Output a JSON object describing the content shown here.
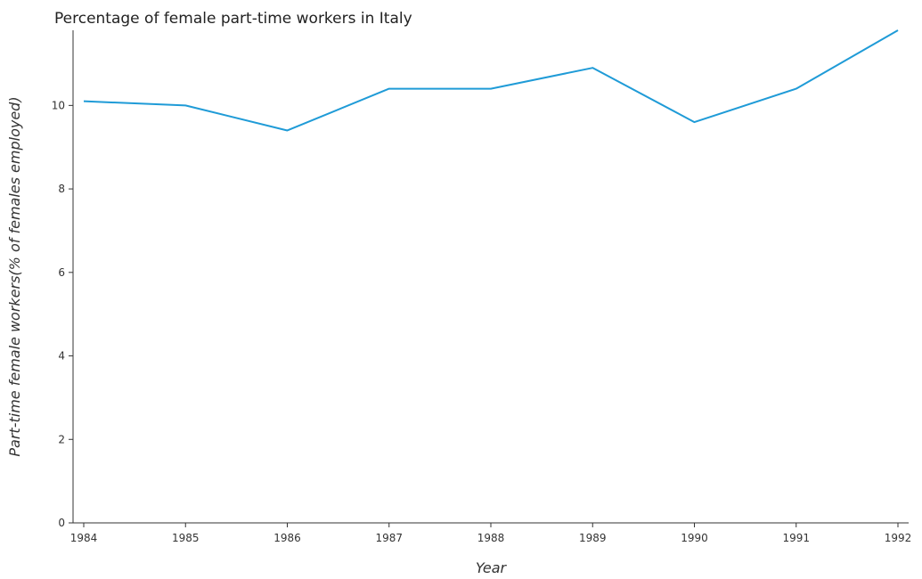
{
  "chart_data": {
    "type": "line",
    "title": "Percentage of female part-time workers in Italy",
    "xlabel": "Year",
    "ylabel": "Part-time female workers(% of females employed)",
    "categories": [
      "1984",
      "1985",
      "1986",
      "1987",
      "1988",
      "1989",
      "1990",
      "1991",
      "1992"
    ],
    "series": [
      {
        "values": [
          10.1,
          10.0,
          9.4,
          10.4,
          10.4,
          10.9,
          9.6,
          10.4,
          11.8
        ],
        "color": "#1f9bd7"
      }
    ],
    "ylim": [
      0,
      11.8
    ],
    "yticks": [
      0,
      2,
      4,
      6,
      8,
      10
    ],
    "ytick_labels": [
      "0",
      "2",
      "4",
      "6",
      "8",
      "10"
    ],
    "grid": false,
    "legend": "none"
  }
}
